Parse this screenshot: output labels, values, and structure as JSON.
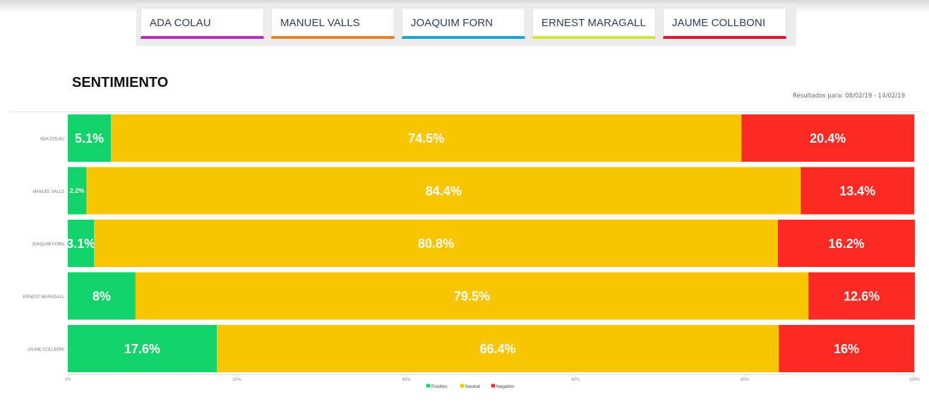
{
  "tabs": [
    {
      "label": "ADA COLAU",
      "color": "#b22fb4"
    },
    {
      "label": "MANUEL VALLS",
      "color": "#e8821e"
    },
    {
      "label": "JOAQUIM FORN",
      "color": "#12a9d6"
    },
    {
      "label": "ERNEST MARAGALL",
      "color": "#d4e537"
    },
    {
      "label": "JAUME COLLBONI",
      "color": "#e3132b"
    }
  ],
  "section_title": "SENTIMIENTO",
  "results_label": "Resultados para: 08/02/19 - 14/02/19",
  "chart_data": {
    "type": "bar",
    "orientation": "horizontal",
    "stacked": true,
    "categories": [
      "ADA COLAU",
      "MANUEL VALLS",
      "JOAQUIM FORN",
      "ERNEST MARAGALL",
      "JAUME COLLBONI"
    ],
    "series": [
      {
        "name": "Positivo",
        "color": "#12d36a",
        "values": [
          5.1,
          2.2,
          3.1,
          8,
          17.6
        ],
        "labels": [
          "5.1%",
          "2.2%",
          "3.1%",
          "8%",
          "17.6%"
        ]
      },
      {
        "name": "Neutral",
        "color": "#f7c600",
        "values": [
          74.5,
          84.4,
          80.8,
          79.5,
          66.4
        ],
        "labels": [
          "74.5%",
          "84.4%",
          "80.8%",
          "79.5%",
          "66.4%"
        ]
      },
      {
        "name": "Negativo",
        "color": "#fb2a22",
        "values": [
          20.4,
          13.4,
          16.2,
          12.6,
          16
        ],
        "labels": [
          "20.4%",
          "13.4%",
          "16.2%",
          "12.6%",
          "16%"
        ]
      }
    ],
    "xlim": [
      0,
      100
    ],
    "xticks": [
      "0%",
      "20%",
      "40%",
      "60%",
      "80%",
      "100%"
    ],
    "legend_position": "bottom",
    "grid": false
  }
}
